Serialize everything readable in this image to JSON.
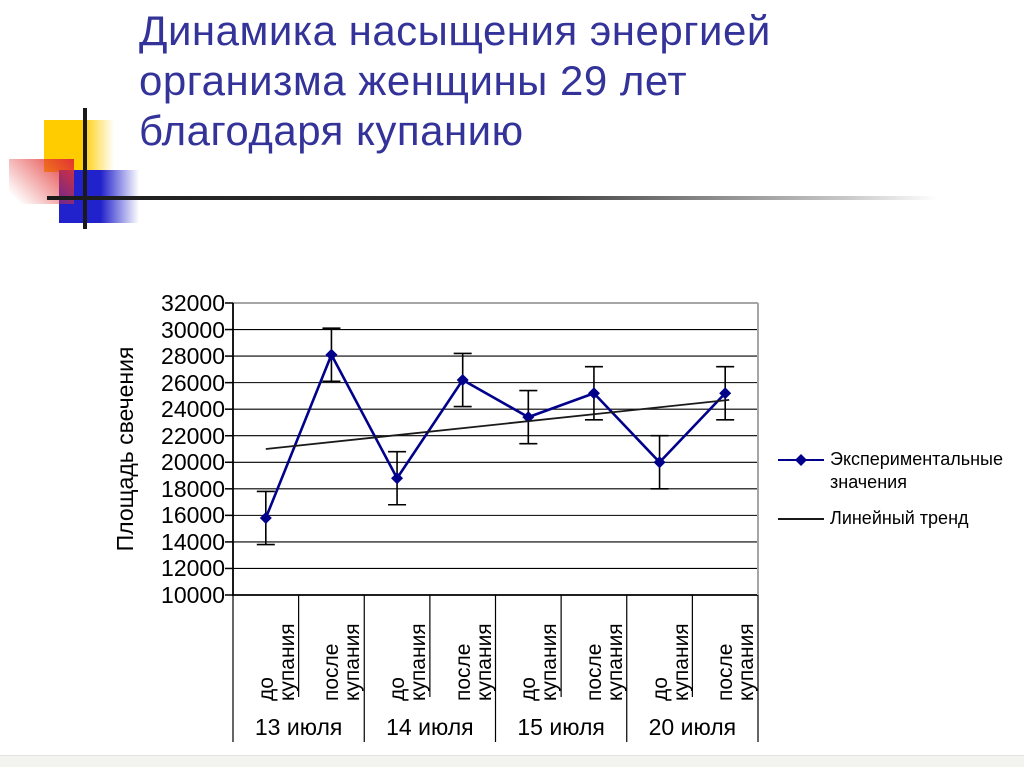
{
  "slide": {
    "title_lines": [
      "Динамика насыщения энергией",
      "организма женщины 29 лет",
      "благодаря купанию"
    ],
    "title_color": "#333399"
  },
  "decoration": {
    "yellow": "#FFCC00",
    "blue": "#2222CC",
    "red": "#E23232",
    "line_dark": "#1a1a1a",
    "line_fade": "#c9c9c9"
  },
  "chart_data": {
    "type": "line",
    "title": "",
    "ylabel": "Площадь свечения",
    "xlabel": "",
    "ylim": [
      10000,
      32000
    ],
    "ytick_step": 2000,
    "yticks": [
      10000,
      12000,
      14000,
      16000,
      18000,
      20000,
      22000,
      24000,
      26000,
      28000,
      30000,
      32000
    ],
    "grid": true,
    "grid_color": "#000000",
    "border_color": "#a6a6a6",
    "legend_position": "right",
    "groups": [
      {
        "label": "13 июля",
        "categories": [
          "до купания",
          "после купания"
        ]
      },
      {
        "label": "14 июля",
        "categories": [
          "до купания",
          "после купания"
        ]
      },
      {
        "label": "15 июля",
        "categories": [
          "до купания",
          "после купания"
        ]
      },
      {
        "label": "20 июля",
        "categories": [
          "до купания",
          "после купания"
        ]
      }
    ],
    "categories": [
      "до купания",
      "после купания",
      "до купания",
      "после купания",
      "до купания",
      "после купания",
      "до купания",
      "после купания"
    ],
    "series": [
      {
        "name": "Экспериментальные значения",
        "type": "line",
        "marker": "diamond",
        "color": "#00008B",
        "values": [
          15800,
          28100,
          18800,
          26200,
          23400,
          25200,
          20000,
          25200
        ],
        "error_bars": 2000
      },
      {
        "name": "Линейный тренд",
        "type": "trendline",
        "color": "#1a1a1a",
        "start_value": 21000,
        "end_value": 24700
      }
    ]
  }
}
